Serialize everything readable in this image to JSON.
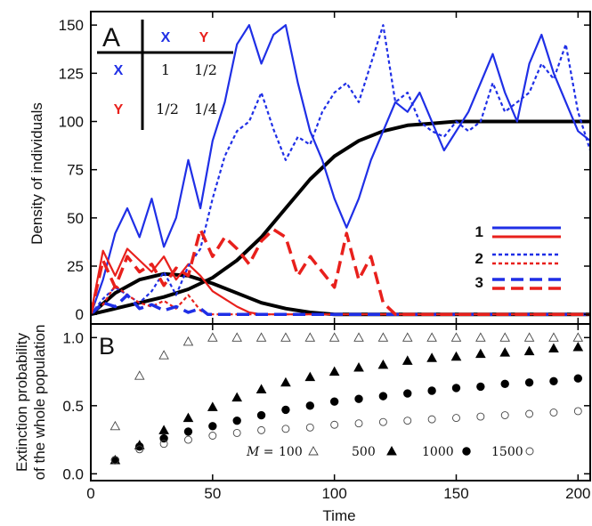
{
  "chart_data": [
    {
      "panel": "A",
      "type": "line",
      "ylabel": "Density of individuals",
      "xlim": [
        0,
        205
      ],
      "ylim": [
        -5,
        157
      ],
      "xticks": [
        0,
        50,
        100,
        150,
        200
      ],
      "yticks": [
        0,
        25,
        50,
        75,
        100,
        125,
        150
      ],
      "grid": false,
      "legend_position": "lower-right",
      "legend": [
        {
          "label": "1",
          "style": "solid"
        },
        {
          "label": "2",
          "style": "dotted"
        },
        {
          "label": "3",
          "style": "dashed"
        }
      ],
      "inset_table": {
        "col_headers": [
          "X",
          "Y"
        ],
        "row_headers": [
          "X",
          "Y"
        ],
        "cells": [
          [
            "1",
            "1/2"
          ],
          [
            "1/2",
            "1/4"
          ]
        ]
      },
      "colors": {
        "X": "#1f2fe6",
        "Y": "#e8201c",
        "deterministic": "#000000"
      },
      "series": [
        {
          "group": "deterministic",
          "x": [
            0,
            10,
            20,
            30,
            40,
            50,
            60,
            70,
            80,
            90,
            100,
            110,
            120,
            130,
            140,
            150,
            160,
            170,
            180,
            190,
            200,
            205
          ],
          "y": [
            0,
            3,
            6,
            9,
            13,
            19,
            28,
            40,
            55,
            70,
            82,
            90,
            95,
            98,
            99,
            100,
            100,
            100,
            100,
            100,
            100,
            100
          ]
        },
        {
          "group": "deterministic",
          "x": [
            0,
            10,
            20,
            30,
            40,
            50,
            60,
            70,
            80,
            90,
            100,
            110,
            120,
            205
          ],
          "y": [
            0,
            11,
            18,
            21,
            20,
            16,
            11,
            6,
            3,
            1,
            0,
            0,
            0,
            0
          ]
        },
        {
          "group": "1-X",
          "style": "solid",
          "x": [
            0,
            5,
            10,
            15,
            20,
            25,
            30,
            35,
            40,
            45,
            50,
            55,
            60,
            65,
            70,
            75,
            80,
            85,
            90,
            95,
            100,
            105,
            110,
            115,
            120,
            125,
            130,
            135,
            140,
            145,
            150,
            155,
            160,
            165,
            170,
            175,
            180,
            185,
            190,
            195,
            200,
            205
          ],
          "y": [
            0,
            18,
            42,
            55,
            40,
            60,
            35,
            50,
            80,
            55,
            90,
            110,
            140,
            150,
            130,
            145,
            150,
            120,
            95,
            80,
            60,
            45,
            60,
            80,
            95,
            110,
            105,
            115,
            100,
            85,
            95,
            105,
            120,
            135,
            115,
            100,
            130,
            145,
            125,
            110,
            95,
            90
          ]
        },
        {
          "group": "1-Y",
          "style": "solid",
          "x": [
            0,
            5,
            10,
            15,
            20,
            25,
            30,
            35,
            40,
            45,
            50,
            55,
            60,
            65,
            70,
            205
          ],
          "y": [
            0,
            33,
            20,
            34,
            28,
            22,
            30,
            18,
            26,
            20,
            12,
            8,
            4,
            1,
            0,
            0
          ]
        },
        {
          "group": "2-X",
          "style": "dotted",
          "x": [
            0,
            5,
            10,
            15,
            20,
            25,
            30,
            35,
            40,
            45,
            50,
            55,
            60,
            65,
            70,
            75,
            80,
            85,
            90,
            95,
            100,
            105,
            110,
            115,
            120,
            125,
            130,
            135,
            140,
            145,
            150,
            155,
            160,
            165,
            170,
            175,
            180,
            185,
            190,
            195,
            200,
            205
          ],
          "y": [
            0,
            8,
            14,
            10,
            6,
            12,
            22,
            10,
            25,
            34,
            60,
            82,
            95,
            100,
            115,
            96,
            80,
            92,
            88,
            105,
            115,
            120,
            110,
            130,
            150,
            110,
            115,
            100,
            95,
            92,
            100,
            95,
            100,
            120,
            105,
            110,
            115,
            130,
            122,
            140,
            105,
            85
          ]
        },
        {
          "group": "2-Y",
          "style": "dotted",
          "x": [
            0,
            5,
            10,
            15,
            20,
            25,
            30,
            35,
            40,
            45,
            48,
            205
          ],
          "y": [
            2,
            5,
            15,
            10,
            6,
            4,
            7,
            3,
            10,
            2,
            0,
            0
          ]
        },
        {
          "group": "3-X",
          "style": "dashed",
          "x": [
            0,
            5,
            10,
            15,
            20,
            25,
            30,
            35,
            40,
            45,
            48,
            205
          ],
          "y": [
            0,
            6,
            4,
            10,
            3,
            5,
            2,
            4,
            1,
            3,
            0,
            0
          ]
        },
        {
          "group": "3-Y",
          "style": "dashed",
          "x": [
            0,
            5,
            10,
            15,
            20,
            25,
            30,
            35,
            40,
            45,
            50,
            55,
            60,
            65,
            70,
            75,
            80,
            85,
            90,
            95,
            100,
            105,
            110,
            115,
            120,
            125,
            205
          ],
          "y": [
            0,
            28,
            14,
            30,
            22,
            26,
            15,
            24,
            20,
            44,
            30,
            40,
            34,
            26,
            38,
            44,
            40,
            20,
            30,
            22,
            14,
            42,
            18,
            30,
            6,
            0,
            0
          ]
        }
      ]
    },
    {
      "panel": "B",
      "type": "scatter",
      "xlabel": "Time",
      "ylabel_line1": "Extinction probability",
      "ylabel_line2": "of the whole population",
      "xlim": [
        0,
        205
      ],
      "ylim": [
        -0.05,
        1.1
      ],
      "xticks": [
        0,
        50,
        100,
        150,
        200
      ],
      "yticks": [
        0.0,
        0.5,
        1.0
      ],
      "grid": false,
      "legend_position": "bottom",
      "legend_label_prefix": "M = ",
      "series": [
        {
          "name": "100",
          "marker": "open-triangle",
          "x": [
            10,
            20,
            30,
            40,
            50,
            60,
            70,
            80,
            90,
            100,
            110,
            120,
            130,
            140,
            150,
            160,
            170,
            180,
            190,
            200
          ],
          "y": [
            0.35,
            0.72,
            0.87,
            0.97,
            1.0,
            1.0,
            1.0,
            1.0,
            1.0,
            1.0,
            1.0,
            1.0,
            1.0,
            1.0,
            1.0,
            1.0,
            1.0,
            1.0,
            1.0,
            1.0
          ]
        },
        {
          "name": "500",
          "marker": "filled-triangle",
          "x": [
            10,
            20,
            30,
            40,
            50,
            60,
            70,
            80,
            90,
            100,
            110,
            120,
            130,
            140,
            150,
            160,
            170,
            180,
            190,
            200
          ],
          "y": [
            0.1,
            0.21,
            0.32,
            0.41,
            0.49,
            0.56,
            0.62,
            0.67,
            0.71,
            0.75,
            0.78,
            0.8,
            0.83,
            0.85,
            0.86,
            0.88,
            0.89,
            0.9,
            0.92,
            0.93
          ]
        },
        {
          "name": "1000",
          "marker": "filled-circle",
          "x": [
            10,
            20,
            30,
            40,
            50,
            60,
            70,
            80,
            90,
            100,
            110,
            120,
            130,
            140,
            150,
            160,
            170,
            180,
            190,
            200
          ],
          "y": [
            0.1,
            0.2,
            0.26,
            0.31,
            0.35,
            0.39,
            0.43,
            0.47,
            0.5,
            0.53,
            0.55,
            0.57,
            0.59,
            0.61,
            0.63,
            0.64,
            0.66,
            0.67,
            0.68,
            0.7
          ]
        },
        {
          "name": "1500",
          "marker": "open-circle",
          "x": [
            10,
            20,
            30,
            40,
            50,
            60,
            70,
            80,
            90,
            100,
            110,
            120,
            130,
            140,
            150,
            160,
            170,
            180,
            190,
            200
          ],
          "y": [
            0.1,
            0.18,
            0.22,
            0.25,
            0.28,
            0.3,
            0.32,
            0.33,
            0.34,
            0.36,
            0.37,
            0.38,
            0.39,
            0.4,
            0.41,
            0.42,
            0.43,
            0.44,
            0.45,
            0.46
          ]
        }
      ]
    }
  ]
}
